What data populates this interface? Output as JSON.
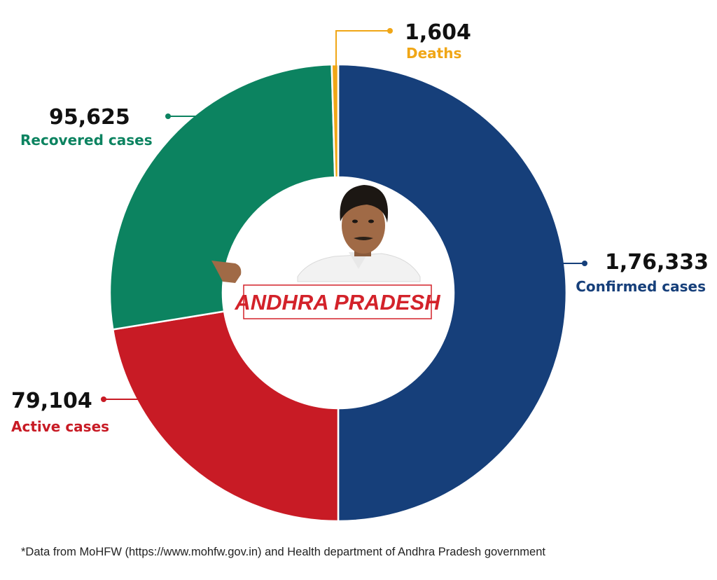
{
  "chart_data": {
    "type": "pie",
    "donut": true,
    "center_title": "ANDHRA PRADESH",
    "slices": [
      {
        "label": "Confirmed cases",
        "value": 176333,
        "display": "1,76,333",
        "color": "#163f7a",
        "label_color": "#163f7a"
      },
      {
        "label": "Active cases",
        "value": 79104,
        "display": "79,104",
        "color": "#c81b25",
        "label_color": "#c81b25"
      },
      {
        "label": "Recovered cases",
        "value": 95625,
        "display": "95,625",
        "color": "#0c8360",
        "label_color": "#0c8360"
      },
      {
        "label": "Deaths",
        "value": 1604,
        "display": "1,604",
        "color": "#f0a616",
        "label_color": "#f0a616"
      }
    ]
  },
  "footnote": "*Data from MoHFW (https://www.mohfw.gov.in) and Health department of Andhra Pradesh government"
}
